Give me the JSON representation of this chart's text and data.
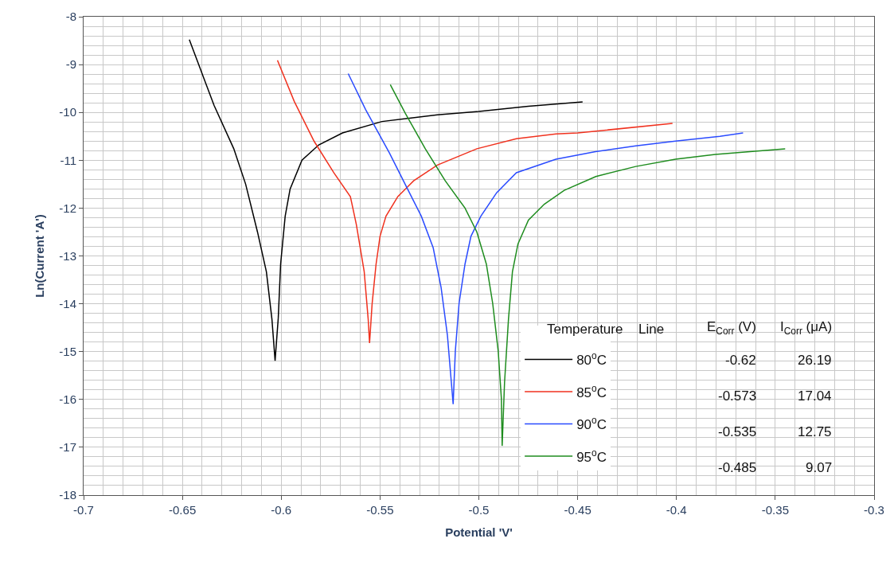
{
  "chart_data": {
    "type": "line",
    "xlabel": "Potential 'V'",
    "ylabel": "Ln(Current 'A')",
    "xlim": [
      -0.7,
      -0.3
    ],
    "xticks": [
      -0.7,
      -0.65,
      -0.6,
      -0.55,
      -0.5,
      -0.45,
      -0.4,
      -0.35,
      -0.3
    ],
    "ylim": [
      -18,
      -8
    ],
    "yticks": [
      -18,
      -17,
      -16,
      -15,
      -14,
      -13,
      -12,
      -11,
      -10,
      -9,
      -8
    ],
    "grid": true,
    "legend": "bottom right",
    "marker": "none",
    "line_style": "solid",
    "annotations": [
      "Temperature",
      "Line",
      "E$_{Corr}$ (V)",
      "I$_{Corr}$ (μA)",
      "-0.62",
      "26.19",
      "-0.573",
      "17.04",
      "-0.535",
      "12.75",
      "-0.485",
      "9.07"
    ],
    "series": [
      {
        "name": "80$^{o}$C",
        "color": "#000000",
        "x": [
          -0.6465,
          -0.634,
          -0.624,
          -0.618,
          -0.612,
          -0.6075,
          -0.6047,
          -0.6031,
          -0.6015,
          -0.6003,
          -0.598,
          -0.5955,
          -0.5895,
          -0.581,
          -0.569,
          -0.549,
          -0.521,
          -0.5,
          -0.475,
          -0.4475
        ],
        "values": [
          -8.48,
          -9.85,
          -10.76,
          -11.5,
          -12.5,
          -13.33,
          -14.32,
          -15.19,
          -14.3,
          -13.17,
          -12.17,
          -11.6,
          -11.0,
          -10.68,
          -10.43,
          -10.19,
          -10.05,
          -9.98,
          -9.87,
          -9.78
        ]
      },
      {
        "name": "85$^{o}$C",
        "color": "#f0311e",
        "x": [
          -0.6019,
          -0.5934,
          -0.5834,
          -0.5734,
          -0.565,
          -0.562,
          -0.558,
          -0.556,
          -0.5553,
          -0.554,
          -0.552,
          -0.55,
          -0.547,
          -0.541,
          -0.533,
          -0.521,
          -0.501,
          -0.481,
          -0.461,
          -0.45,
          -0.402
        ],
        "values": [
          -8.91,
          -9.77,
          -10.6,
          -11.26,
          -11.76,
          -12.34,
          -13.33,
          -14.32,
          -14.82,
          -14.0,
          -13.17,
          -12.59,
          -12.17,
          -11.76,
          -11.43,
          -11.1,
          -10.76,
          -10.55,
          -10.45,
          -10.43,
          -10.23
        ]
      },
      {
        "name": "90$^{o}$C",
        "color": "#2a4bff",
        "x": [
          -0.5661,
          -0.5573,
          -0.5452,
          -0.5372,
          -0.5291,
          -0.5231,
          -0.5191,
          -0.5159,
          -0.5139,
          -0.513,
          -0.5119,
          -0.51,
          -0.507,
          -0.504,
          -0.499,
          -0.491,
          -0.481,
          -0.461,
          -0.441,
          -0.4206,
          -0.4005,
          -0.378,
          -0.3663
        ],
        "values": [
          -9.19,
          -9.94,
          -10.85,
          -11.51,
          -12.17,
          -12.83,
          -13.66,
          -14.66,
          -15.65,
          -16.1,
          -14.99,
          -13.99,
          -13.17,
          -12.59,
          -12.17,
          -11.68,
          -11.26,
          -10.98,
          -10.82,
          -10.7,
          -10.6,
          -10.5,
          -10.43
        ]
      },
      {
        "name": "95$^{o}$C",
        "color": "#1e8c1e",
        "x": [
          -0.5448,
          -0.5372,
          -0.5271,
          -0.517,
          -0.507,
          -0.501,
          -0.4962,
          -0.493,
          -0.4902,
          -0.4886,
          -0.4882,
          -0.487,
          -0.485,
          -0.483,
          -0.4802,
          -0.4749,
          -0.4669,
          -0.4568,
          -0.4408,
          -0.4206,
          -0.4005,
          -0.3804,
          -0.3603,
          -0.345
        ],
        "values": [
          -9.42,
          -10.02,
          -10.76,
          -11.43,
          -12.0,
          -12.5,
          -13.17,
          -13.99,
          -14.99,
          -15.98,
          -16.97,
          -15.65,
          -14.32,
          -13.33,
          -12.75,
          -12.25,
          -11.92,
          -11.63,
          -11.34,
          -11.13,
          -10.98,
          -10.88,
          -10.81,
          -10.76
        ]
      }
    ]
  }
}
